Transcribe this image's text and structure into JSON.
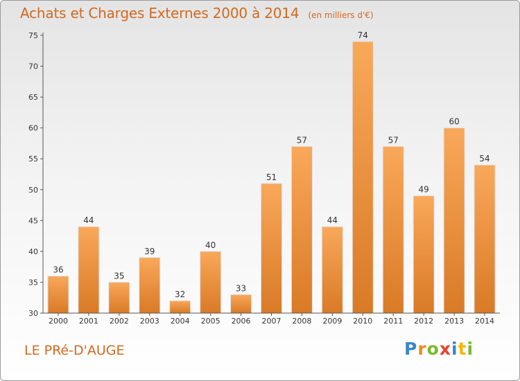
{
  "title": "Achats et Charges Externes 2000 à 2014",
  "subtitle": "(en milliers d'€)",
  "commune": "LE PRé-D'AUGE",
  "logo": {
    "letters": [
      "P",
      "r",
      "o",
      "x",
      "i",
      "t",
      "i"
    ],
    "colors": [
      "#3a86c8",
      "#f08a1c",
      "#7cb82f",
      "#e8412c",
      "#3a86c8",
      "#f2b705",
      "#7cb82f"
    ]
  },
  "colors": {
    "bar_light": "#f9a85a",
    "bar_dark": "#d97a26",
    "accent": "#d2691e"
  },
  "chart_data": {
    "type": "bar",
    "title": "Achats et Charges Externes 2000 à 2014",
    "subtitle": "(en milliers d'€)",
    "categories": [
      "2000",
      "2001",
      "2002",
      "2003",
      "2004",
      "2005",
      "2006",
      "2007",
      "2008",
      "2009",
      "2010",
      "2011",
      "2012",
      "2013",
      "2014"
    ],
    "values": [
      36,
      44,
      35,
      39,
      32,
      40,
      33,
      51,
      57,
      44,
      74,
      57,
      49,
      60,
      54
    ],
    "ylim": [
      30,
      75
    ],
    "yticks": [
      30,
      35,
      40,
      45,
      50,
      55,
      60,
      65,
      70,
      75
    ],
    "xlabel": "",
    "ylabel": "",
    "grid": false,
    "legend": "none"
  }
}
